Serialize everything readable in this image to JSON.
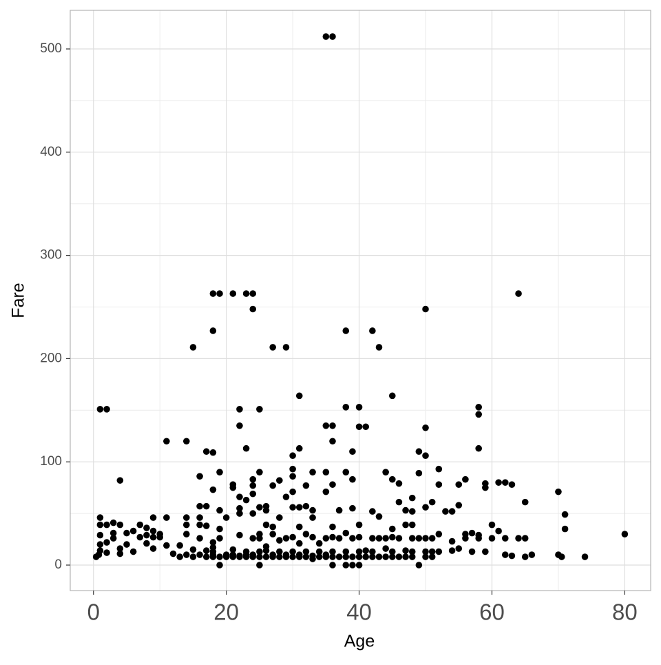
{
  "chart_data": {
    "type": "scatter",
    "x_label": "Age",
    "y_label": "Fare",
    "color": "#000000",
    "xlim": [
      -3.5,
      83.9
    ],
    "ylim": [
      -24.7,
      537.4
    ],
    "xticks": [
      0,
      20,
      40,
      60,
      80
    ],
    "yticks": [
      0,
      100,
      200,
      300,
      400,
      500
    ],
    "x_minor_grid": [
      10,
      30,
      50,
      70
    ],
    "y_minor_grid": [
      50,
      150,
      250,
      350,
      450
    ],
    "grid": true,
    "x": [
      35,
      36,
      18,
      19,
      21,
      23,
      24,
      64,
      24,
      50,
      18,
      38,
      42,
      15,
      27,
      29,
      43,
      31,
      45,
      1,
      2,
      22,
      25,
      38,
      40,
      58,
      58,
      22,
      35,
      36,
      40,
      41,
      50,
      11,
      14,
      36,
      17,
      18,
      39,
      49,
      23,
      31,
      58,
      30,
      50,
      52,
      30,
      19,
      25,
      33,
      35,
      38,
      44,
      49,
      16,
      24,
      30,
      39,
      4,
      28,
      45,
      56,
      61,
      62,
      63,
      21,
      21,
      24,
      27,
      32,
      36,
      46,
      52,
      55,
      59,
      59,
      18,
      24,
      29,
      22,
      23,
      30,
      35,
      48,
      65,
      70,
      46,
      16,
      17,
      22,
      25,
      26,
      30,
      31,
      32,
      39,
      50,
      51,
      47,
      54,
      55,
      71,
      42,
      43,
      56,
      22,
      24,
      26,
      33,
      19,
      37,
      48,
      53,
      1,
      9,
      11,
      14,
      16,
      28,
      33,
      20,
      1,
      2,
      3,
      4,
      7,
      8,
      9,
      14,
      16,
      17,
      19,
      26,
      27,
      31,
      36,
      40,
      45,
      47,
      48,
      60,
      61,
      58,
      57,
      66,
      71,
      80,
      74,
      70,
      70.5,
      0.4,
      0.8,
      1,
      1,
      1,
      2,
      2,
      3,
      3,
      4,
      4,
      5,
      5,
      6,
      6,
      7,
      8,
      8,
      9,
      9,
      10,
      10,
      11,
      12,
      13,
      13,
      14,
      14,
      15,
      15,
      16,
      16,
      17,
      17,
      18,
      18,
      18,
      18,
      18,
      19,
      19,
      19,
      20,
      20,
      20,
      21,
      21,
      21,
      22,
      22,
      22,
      23,
      23,
      23,
      24,
      24,
      24,
      25,
      25,
      25,
      25,
      25,
      26,
      26,
      26,
      27,
      27,
      27,
      28,
      28,
      28,
      29,
      29,
      29,
      30,
      30,
      30,
      31,
      31,
      31,
      32,
      32,
      32,
      33,
      33,
      33,
      34,
      34,
      34,
      35,
      35,
      35,
      36,
      36,
      36,
      36,
      37,
      37,
      38,
      38,
      38,
      38,
      39,
      39,
      39,
      40,
      40,
      40,
      40,
      41,
      41,
      42,
      42,
      42,
      43,
      43,
      44,
      44,
      44,
      45,
      45,
      45,
      46,
      46,
      47,
      47,
      48,
      48,
      48,
      49,
      49,
      50,
      50,
      50,
      51,
      51,
      51,
      52,
      52,
      54,
      54,
      55,
      56,
      57,
      58,
      59,
      60,
      62,
      62,
      63,
      64,
      65,
      65
    ],
    "values": [
      512,
      512,
      263,
      263,
      263,
      263,
      263,
      263,
      248,
      248,
      227,
      227,
      227,
      211,
      211,
      211,
      211,
      164,
      164,
      151,
      151,
      151,
      151,
      153,
      153,
      153,
      146,
      135,
      135,
      135,
      134,
      134,
      133,
      120,
      120,
      120,
      110,
      109,
      110,
      110,
      113,
      113,
      113,
      106,
      106,
      93,
      93,
      90,
      90,
      90,
      90,
      90,
      90,
      89,
      86,
      83,
      86,
      83,
      82,
      82,
      83,
      83,
      80,
      80,
      78,
      78,
      75,
      77,
      77,
      77,
      78,
      79,
      78,
      78,
      79,
      75,
      73,
      69,
      66,
      66,
      63,
      71,
      71,
      65,
      61,
      71,
      61,
      57,
      57,
      55,
      56,
      57,
      56,
      56,
      57,
      55,
      56,
      61,
      53,
      52,
      58,
      49,
      52,
      47,
      30,
      50,
      50,
      53,
      53,
      53,
      53,
      52,
      52,
      46,
      46,
      46,
      46,
      46,
      46,
      46,
      46,
      39,
      39,
      41,
      39,
      39,
      36,
      33,
      39,
      39,
      38,
      35,
      39,
      37,
      37,
      37,
      39,
      35,
      39,
      39,
      39,
      33,
      29,
      31,
      10,
      35,
      30,
      8,
      10,
      8,
      8,
      10,
      14,
      20,
      29,
      12,
      22,
      26,
      31,
      16,
      11,
      20,
      31,
      13,
      33,
      27,
      29,
      21,
      16,
      27,
      27,
      30,
      19,
      11,
      8,
      19,
      10,
      30,
      15,
      8,
      10,
      26,
      8,
      14,
      8,
      10,
      13,
      17,
      22,
      8,
      0,
      26,
      8,
      10,
      9,
      8,
      10,
      15,
      8,
      9,
      29,
      8,
      10,
      13,
      8,
      10,
      26,
      0,
      8,
      13,
      26,
      30,
      8,
      14,
      18,
      8,
      10,
      30,
      8,
      13,
      24,
      8,
      10,
      26,
      8,
      13,
      27,
      8,
      10,
      21,
      8,
      13,
      30,
      6,
      9,
      27,
      8,
      13,
      21,
      8,
      10,
      26,
      0,
      8,
      13,
      27,
      8,
      26,
      0,
      8,
      13,
      31,
      0,
      8,
      26,
      0,
      8,
      13,
      27,
      8,
      14,
      8,
      13,
      26,
      8,
      26,
      8,
      16,
      26,
      8,
      13,
      27,
      8,
      26,
      8,
      14,
      8,
      13,
      26,
      0,
      26,
      8,
      13,
      26,
      8,
      13,
      26,
      13,
      30,
      14,
      23,
      16,
      26,
      13,
      26,
      13,
      26,
      10,
      26,
      9,
      26,
      26,
      8
    ]
  }
}
